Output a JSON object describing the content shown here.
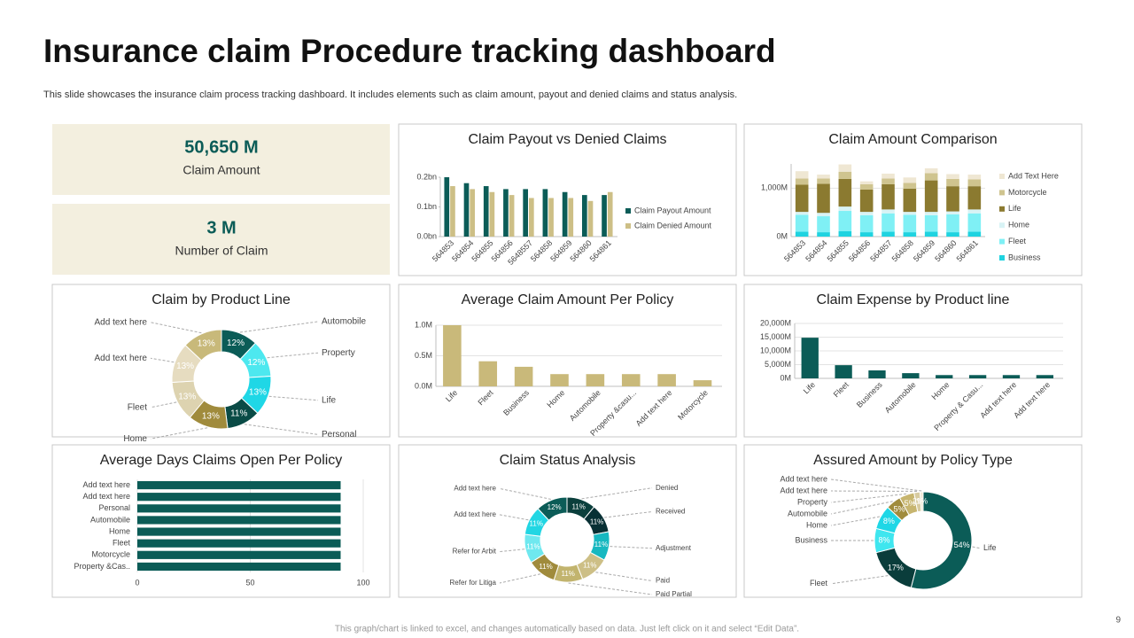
{
  "title": "Insurance claim Procedure tracking dashboard",
  "subtitle": "This slide showcases the insurance claim process tracking dashboard. It includes elements such as claim amount, payout and denied claims and status analysis.",
  "kpis": [
    {
      "value": "50,650 M",
      "label": "Claim Amount"
    },
    {
      "value": "3 M",
      "label": "Number of Claim"
    }
  ],
  "footer": "This graph/chart is linked to excel, and changes automatically based on data. Just left click on it and select “Edit Data”.",
  "page_number": "9",
  "chart_data": [
    {
      "type": "bar",
      "title": "Claim Payout vs Denied Claims",
      "categories": [
        "564853",
        "564854",
        "564855",
        "564856",
        "5648557",
        "564858",
        "564859",
        "564860",
        "564861"
      ],
      "series": [
        {
          "name": "Claim Payout Amount",
          "color": "#0b5c57",
          "values": [
            0.2,
            0.18,
            0.17,
            0.16,
            0.16,
            0.16,
            0.15,
            0.14,
            0.14
          ]
        },
        {
          "name": "Claim Denied Amount",
          "color": "#cdbf86",
          "values": [
            0.17,
            0.16,
            0.15,
            0.14,
            0.13,
            0.13,
            0.13,
            0.12,
            0.15
          ]
        }
      ],
      "ylim": [
        0,
        0.2
      ],
      "yticks": [
        {
          "value": 0,
          "label": "0.0bn"
        },
        {
          "value": 0.1,
          "label": "0.1bn"
        },
        {
          "value": 0.2,
          "label": "0.2bn"
        }
      ],
      "grid": false,
      "legend": "right"
    },
    {
      "type": "bar",
      "title": "Claim Amount  Comparison",
      "stacked": true,
      "categories": [
        "564853",
        "564854",
        "564855",
        "564856",
        "564857",
        "564858",
        "564859",
        "564860",
        "564861"
      ],
      "series": [
        {
          "name": "Business",
          "color": "#1fd3e0",
          "values": [
            100,
            90,
            110,
            90,
            100,
            90,
            100,
            90,
            100
          ]
        },
        {
          "name": "Fleet",
          "color": "#7ff0f5",
          "values": [
            350,
            330,
            420,
            350,
            380,
            360,
            340,
            370,
            380
          ]
        },
        {
          "name": "Home",
          "color": "#d8f3f5",
          "values": [
            60,
            70,
            90,
            70,
            80,
            60,
            70,
            60,
            80
          ]
        },
        {
          "name": "Life",
          "color": "#8b7a30",
          "values": [
            560,
            600,
            570,
            460,
            520,
            480,
            650,
            520,
            480
          ]
        },
        {
          "name": "Motorcycle",
          "color": "#cfc48f",
          "values": [
            130,
            110,
            150,
            110,
            120,
            120,
            150,
            150,
            140
          ]
        },
        {
          "name": "Add Text Here",
          "color": "#efe7d3",
          "values": [
            150,
            80,
            150,
            60,
            100,
            110,
            100,
            100,
            100
          ]
        }
      ],
      "ylim": [
        0,
        1500
      ],
      "yticks": [
        {
          "value": 0,
          "label": "0M"
        },
        {
          "value": 1000,
          "label": "1,000M"
        }
      ],
      "grid": true,
      "legend": "right"
    },
    {
      "type": "donut",
      "title": "Claim by Product Line",
      "categories": [
        "Automobile",
        "Property",
        "Life",
        "Personal",
        "Home",
        "Fleet",
        "Add text here",
        "Add text here"
      ],
      "values": [
        12,
        12,
        13,
        11,
        13,
        13,
        13,
        13
      ],
      "value_labels": [
        "12%",
        "12%",
        "13%",
        "11%",
        "13%",
        "13%",
        "13%",
        "13%"
      ],
      "colors": [
        "#0b5c57",
        "#4de8ef",
        "#1fd7e6",
        "#0a4b46",
        "#a08b3c",
        "#ddd3b0",
        "#e6dcc0",
        "#c8b97a"
      ]
    },
    {
      "type": "bar",
      "title": "Average Claim Amount Per Policy",
      "categories": [
        "Life",
        "Fleet",
        "Business",
        "Home",
        "Automobile",
        "Property &casu...",
        "Add text here",
        "Motorcycle"
      ],
      "values": [
        1.0,
        0.41,
        0.32,
        0.2,
        0.2,
        0.2,
        0.2,
        0.1
      ],
      "color": "#c9b97a",
      "ylim": [
        0,
        1.0
      ],
      "yticks": [
        {
          "value": 0,
          "label": "0.0M"
        },
        {
          "value": 0.5,
          "label": "0.5M"
        },
        {
          "value": 1.0,
          "label": "1.0M"
        }
      ],
      "grid": true
    },
    {
      "type": "bar",
      "title": "Claim Expense by Product line",
      "categories": [
        "Life",
        "Fleet",
        "Business",
        "Automobile",
        "Home",
        "Property & Casu...",
        "Add text here",
        "Add text here"
      ],
      "values": [
        14800,
        4800,
        2900,
        1900,
        1200,
        1200,
        1200,
        1200
      ],
      "color": "#0b5c57",
      "ylim": [
        0,
        20000
      ],
      "yticks": [
        {
          "value": 0,
          "label": "0M"
        },
        {
          "value": 5000,
          "label": "5,000M"
        },
        {
          "value": 10000,
          "label": "10,000M"
        },
        {
          "value": 15000,
          "label": "15,000M"
        },
        {
          "value": 20000,
          "label": "20,000M"
        }
      ],
      "grid": true
    },
    {
      "type": "hbar",
      "title": "Average Days Claims Open Per Policy",
      "categories": [
        "Add text here",
        "Add text here",
        "Personal",
        "Automobile",
        "Home",
        "Fleet",
        "Motorcycle",
        "Property &Cas.."
      ],
      "values": [
        90,
        90,
        90,
        90,
        90,
        90,
        90,
        90
      ],
      "color": "#0b5c57",
      "xlim": [
        0,
        100
      ],
      "xticks": [
        0,
        50,
        100
      ],
      "grid": true
    },
    {
      "type": "donut",
      "title": "Claim Status  Analysis",
      "categories": [
        "Denied",
        "Received",
        "Adjustment",
        "Paid",
        "Paid Partial",
        "Refer for Litiga",
        "Refer for Arbit",
        "Add text here",
        "Add text here"
      ],
      "values": [
        11,
        11,
        11,
        11,
        11,
        11,
        11,
        11,
        12
      ],
      "value_labels": [
        "11%",
        "11%",
        "11%",
        "11%",
        "11%",
        "11%",
        "11%",
        "11%",
        "12%"
      ],
      "colors": [
        "#0b3f3c",
        "#083034",
        "#17b8c0",
        "#cdbf86",
        "#c2b46e",
        "#a08b3c",
        "#6fe8ef",
        "#22d6e3",
        "#0b5c57"
      ]
    },
    {
      "type": "donut",
      "title": "Assured Amount by Policy Type",
      "categories": [
        "Life",
        "Fleet",
        "Business",
        "Home",
        "Automobile",
        "Property",
        "Add text here",
        "Add text here"
      ],
      "values": [
        54,
        17,
        8,
        8,
        5,
        5,
        2,
        1
      ],
      "value_labels": [
        "54%",
        "17%",
        "8%",
        "8%",
        "5%",
        "5%",
        "2%",
        "1%"
      ],
      "colors": [
        "#0b5c57",
        "#0a3d3b",
        "#3fe6ef",
        "#1fd7e6",
        "#a08b3c",
        "#c7b56f",
        "#d7cba0",
        "#efe7d3"
      ]
    }
  ]
}
